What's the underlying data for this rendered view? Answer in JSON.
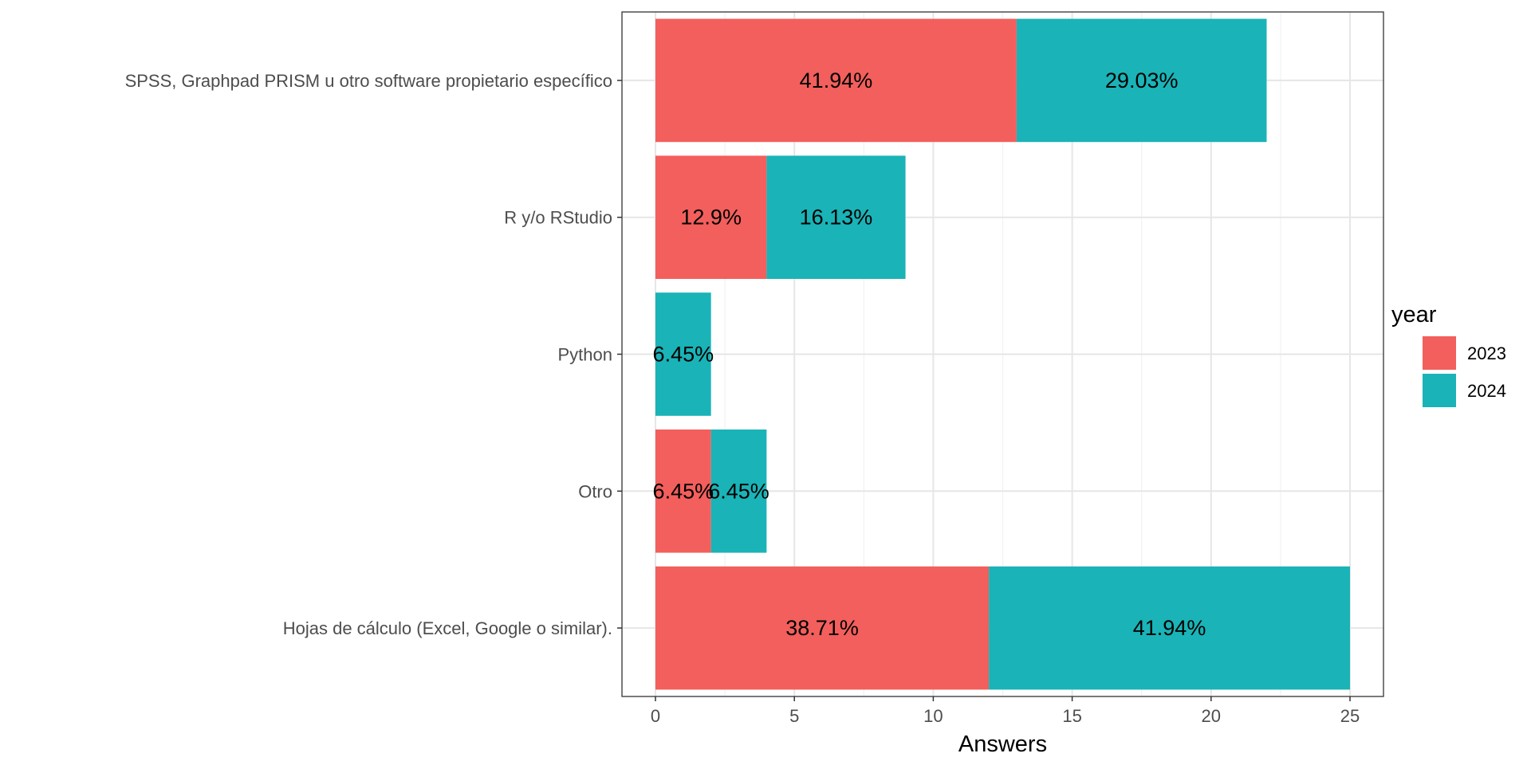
{
  "chart_data": {
    "type": "bar",
    "orientation": "horizontal",
    "stacked": true,
    "categories": [
      "SPSS, Graphpad PRISM u otro software propietario específico",
      "R y/o RStudio",
      "Python",
      "Otro",
      "Hojas de cálculo (Excel, Google o similar)."
    ],
    "series": [
      {
        "name": "2023",
        "color": "#F8766D",
        "values": [
          13,
          4,
          0,
          2,
          12
        ],
        "labels": [
          "41.94%",
          "12.9%",
          "",
          "6.45%",
          "38.71%"
        ]
      },
      {
        "name": "2024",
        "color": "#00BFC4",
        "values": [
          9,
          5,
          2,
          2,
          13
        ],
        "labels": [
          "29.03%",
          "16.13%",
          "6.45%",
          "6.45%",
          "41.94%"
        ]
      }
    ],
    "xlabel": "Answers",
    "ylabel": "",
    "xlim": [
      0,
      25
    ],
    "xticks": [
      0,
      5,
      10,
      15,
      20,
      25
    ],
    "legend_title": "year",
    "legend_position": "right",
    "grid": true,
    "bar_fill": [
      "#F25F5C",
      "#1AB3B7"
    ]
  }
}
